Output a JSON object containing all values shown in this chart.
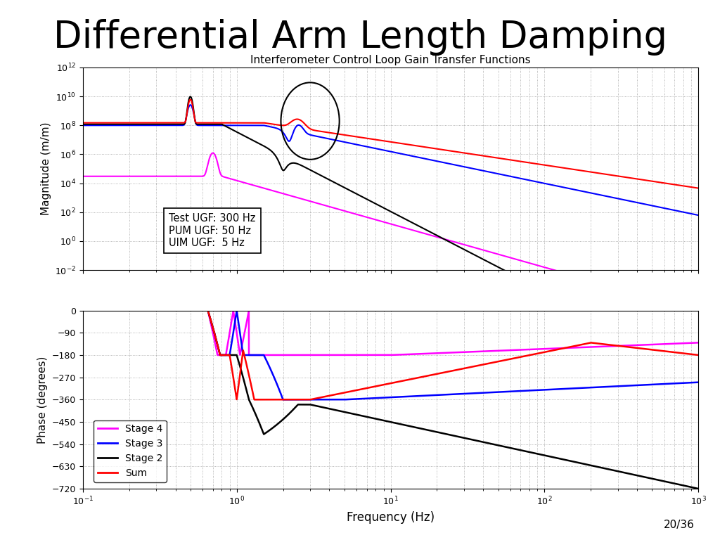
{
  "title": "Differential Arm Length Damping",
  "subplot_title": "Interferometer Control Loop Gain Transfer Functions",
  "xlabel": "Frequency (Hz)",
  "ylabel_mag": "Magnitude (m/m)",
  "ylabel_phase": "Phase (degrees)",
  "annotation_text": "Test UGF: 300 Hz\nPUM UGF: 50 Hz\nUIM UGF:  5 Hz",
  "legend_labels": [
    "Stage 4",
    "Stage 3",
    "Stage 2",
    "Sum"
  ],
  "colors": {
    "stage4": "#FF00FF",
    "stage3": "#0000FF",
    "stage2": "#000000",
    "sum": "#FF0000"
  },
  "freq_min": 0.1,
  "freq_max": 1000,
  "phase_ylim": [
    -720,
    0
  ],
  "phase_yticks": [
    0,
    -90,
    -180,
    -270,
    -360,
    -450,
    -540,
    -630,
    -720
  ],
  "slide_number": "20/36",
  "background_color": "#FFFFFF"
}
